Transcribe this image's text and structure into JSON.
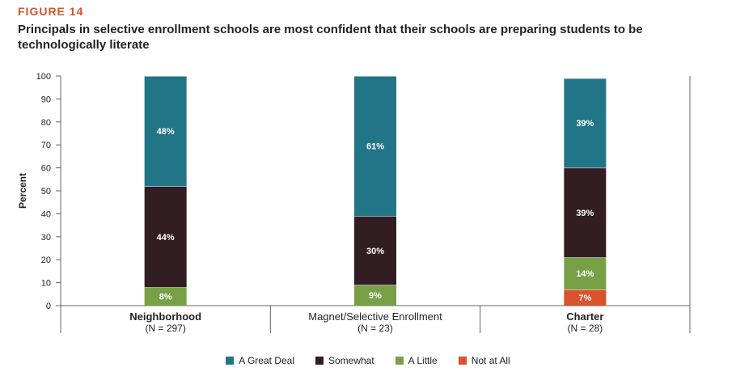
{
  "figure_label": "FIGURE 14",
  "title": "Principals in selective enrollment schools are most confident that their schools are preparing students to be technologically literate",
  "colors": {
    "great_deal": "#217587",
    "somewhat": "#311d22",
    "a_little": "#78a046",
    "not_at_all": "#d9532b"
  },
  "chart_data": {
    "type": "bar",
    "stacked": true,
    "ylabel": "Percent",
    "ylim": [
      0,
      100
    ],
    "yticks": [
      0,
      10,
      20,
      30,
      40,
      50,
      60,
      70,
      80,
      90,
      100
    ],
    "categories": [
      {
        "name": "Neighborhood",
        "sub": "(N = 297)",
        "bold": true
      },
      {
        "name": "Magnet/Selective Enrollment",
        "sub": "(N = 23)",
        "bold": false
      },
      {
        "name": "Charter",
        "sub": "(N = 28)",
        "bold": true
      }
    ],
    "series": [
      {
        "name": "Not at All",
        "color_key": "not_at_all",
        "values": [
          0,
          0,
          7
        ],
        "labels": [
          "",
          "",
          "7%"
        ]
      },
      {
        "name": "A Little",
        "color_key": "a_little",
        "values": [
          8,
          9,
          14
        ],
        "labels": [
          "8%",
          "9%",
          "14%"
        ]
      },
      {
        "name": "Somewhat",
        "color_key": "somewhat",
        "values": [
          44,
          30,
          39
        ],
        "labels": [
          "44%",
          "30%",
          "39%"
        ]
      },
      {
        "name": "A Great Deal",
        "color_key": "great_deal",
        "values": [
          48,
          61,
          39
        ],
        "labels": [
          "48%",
          "61%",
          "39%"
        ]
      }
    ]
  },
  "legend": [
    {
      "label": "A Great Deal",
      "color_key": "great_deal"
    },
    {
      "label": "Somewhat",
      "color_key": "somewhat"
    },
    {
      "label": "A Little",
      "color_key": "a_little"
    },
    {
      "label": "Not at All",
      "color_key": "not_at_all"
    }
  ]
}
